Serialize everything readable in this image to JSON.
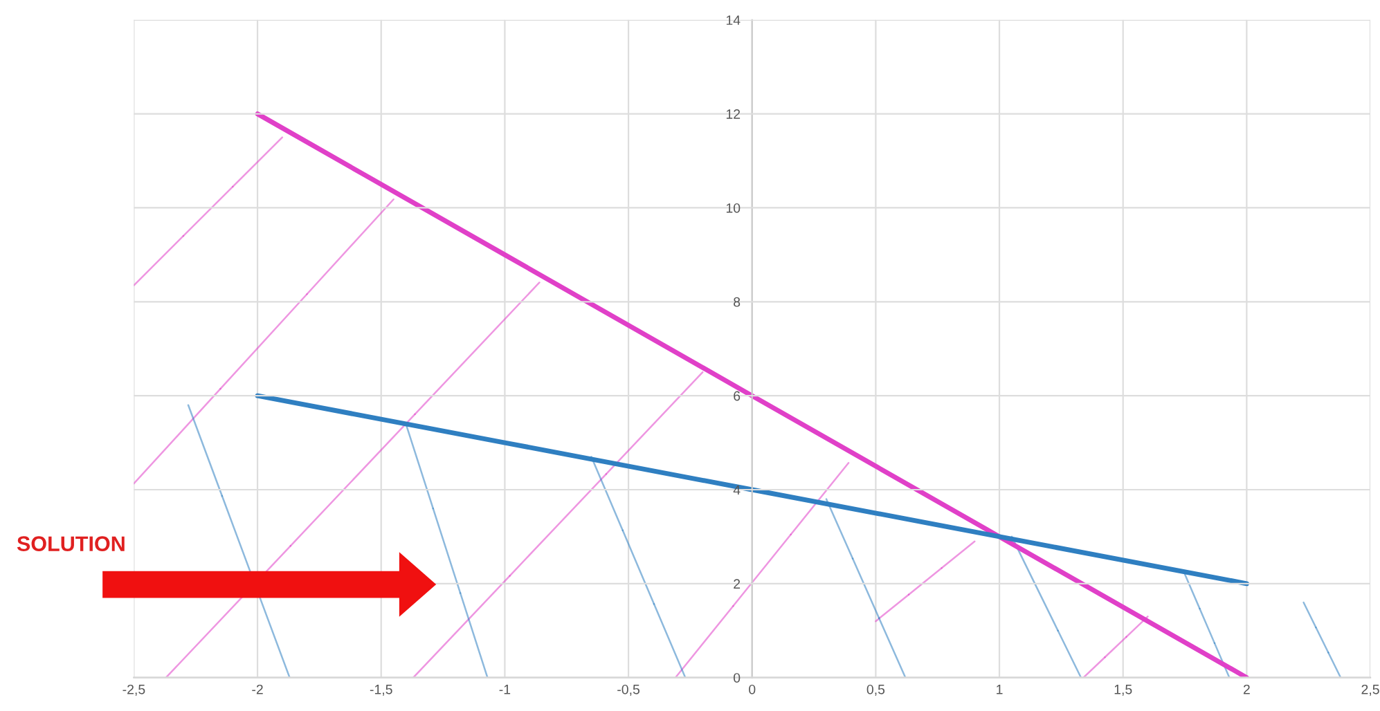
{
  "chart_data": {
    "type": "line",
    "x": [
      -2,
      -1,
      0,
      1,
      2
    ],
    "series": [
      {
        "color": "#e040c8",
        "values": [
          12,
          9,
          6,
          3,
          0
        ]
      },
      {
        "color": "#2f7fc1",
        "values": [
          6,
          5,
          4,
          3,
          2
        ]
      }
    ],
    "xlim": [
      -2.5,
      2.5
    ],
    "xticks": [
      {
        "value": -2.5,
        "label": "-2,5"
      },
      -2,
      {
        "value": -1.5,
        "label": "-1,5"
      },
      -1,
      {
        "value": -0.5,
        "label": "-0,5"
      },
      0,
      {
        "value": 0.5,
        "label": "0,5"
      },
      1,
      {
        "value": 1.5,
        "label": "1,5"
      },
      2,
      {
        "value": 2.5,
        "label": "2,5"
      }
    ],
    "ylim": [
      0,
      14
    ],
    "yticks": [
      0,
      2,
      4,
      6,
      8,
      10,
      12,
      14
    ],
    "grid": true,
    "annotations": [
      "SOLUTION"
    ]
  }
}
